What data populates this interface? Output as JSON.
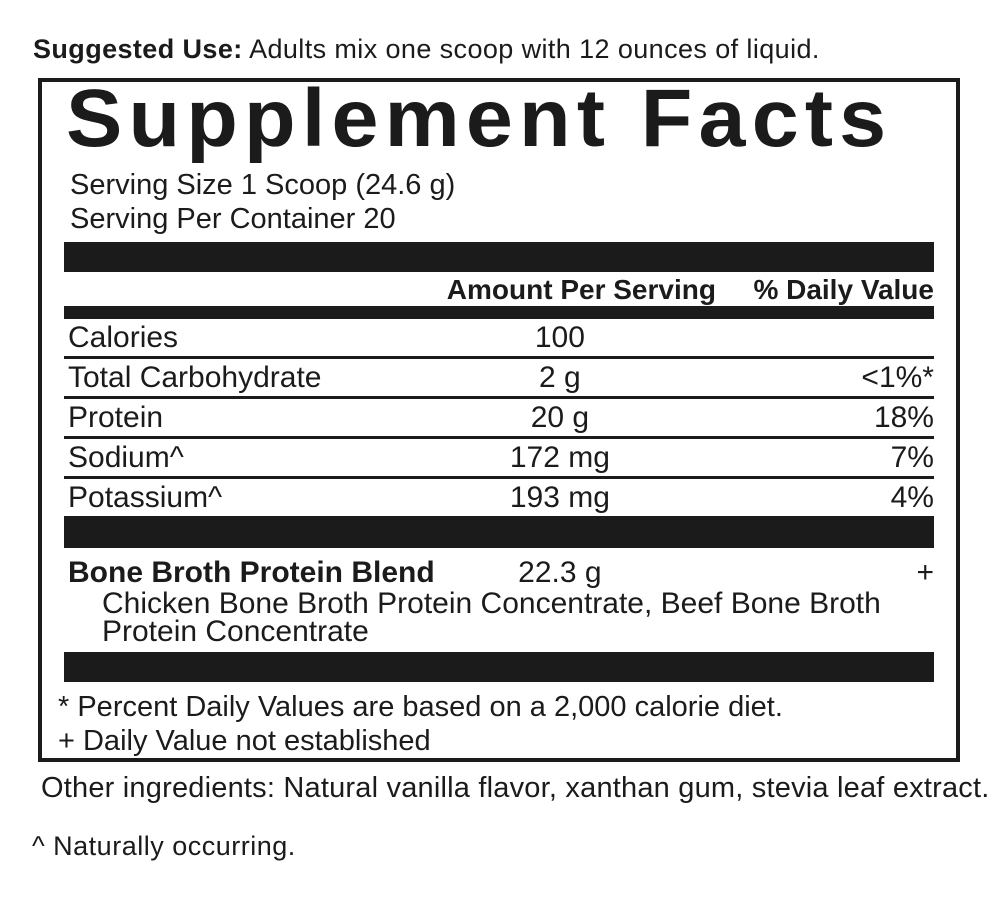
{
  "suggested_use": {
    "label": "Suggested Use:",
    "text": " Adults mix one scoop with 12 ounces of liquid."
  },
  "panel": {
    "title": "Supplement Facts",
    "serving_size": "Serving Size 1 Scoop (24.6 g)",
    "servings_per_container": "Serving Per Container 20",
    "columns": {
      "amount": "Amount Per Serving",
      "daily_value": "% Daily Value"
    },
    "rows": [
      {
        "label": "Calories",
        "amount": "100",
        "dv": ""
      },
      {
        "label": "Total Carbohydrate",
        "amount": "2 g",
        "dv": "<1%*"
      },
      {
        "label": "Protein",
        "amount": "20 g",
        "dv": "18%"
      },
      {
        "label": "Sodium^",
        "amount": "172 mg",
        "dv": "7%"
      },
      {
        "label": "Potassium^",
        "amount": "193 mg",
        "dv": "4%"
      }
    ],
    "blend": {
      "label": "Bone Broth Protein Blend",
      "amount": "22.3 g",
      "dv": "+",
      "ingredients": "Chicken Bone Broth Protein Concentrate, Beef Bone Broth Protein Concentrate"
    },
    "footnotes": [
      "* Percent Daily Values are based on a 2,000 calorie diet.",
      "+ Daily Value not established"
    ]
  },
  "other_ingredients": "Other ingredients: Natural vanilla flavor, xanthan gum, stevia leaf extract.",
  "naturally_occurring": "^ Naturally occurring.",
  "colors": {
    "ink": "#1b1b1b",
    "background": "#ffffff"
  }
}
